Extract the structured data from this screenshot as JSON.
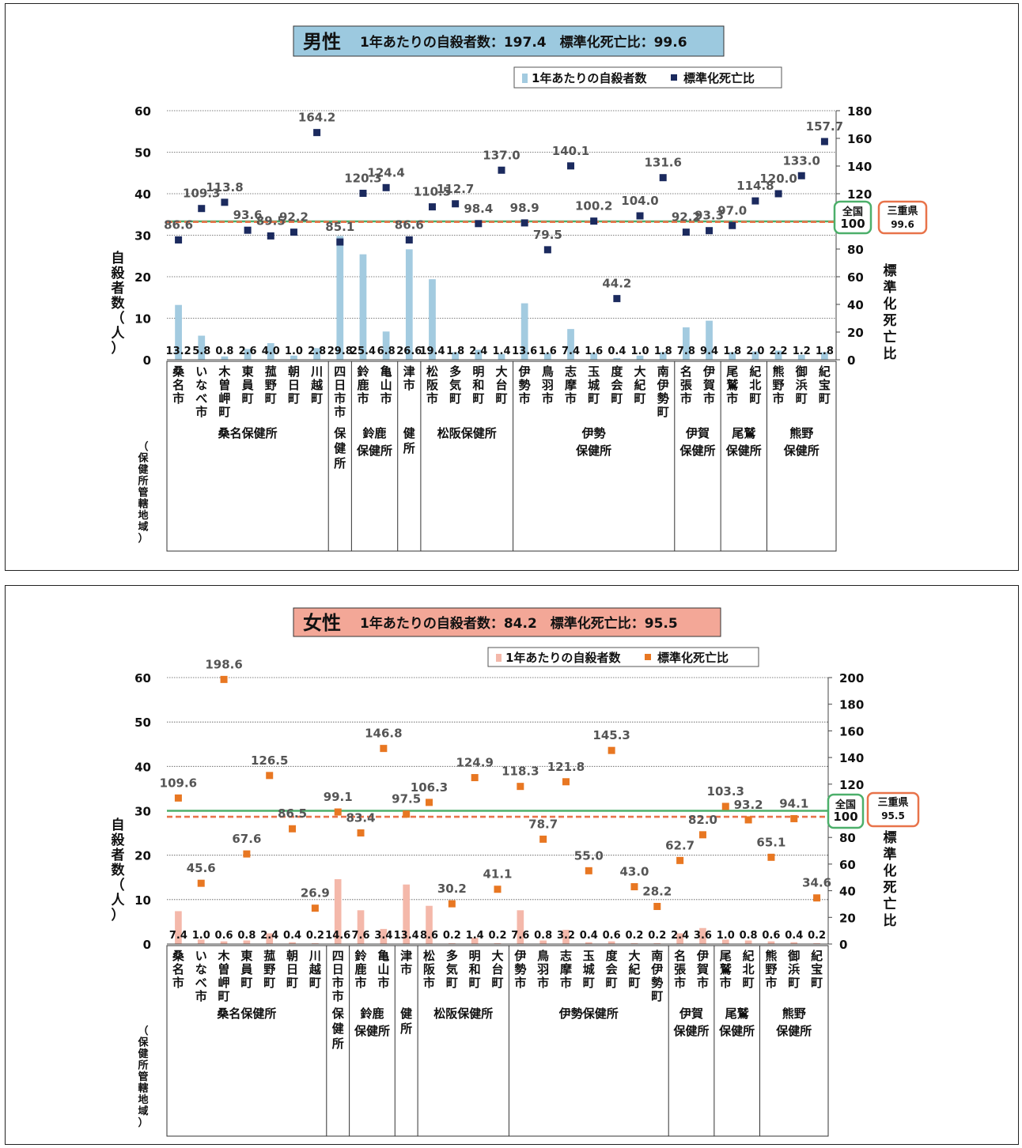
{
  "charts": [
    {
      "title": {
        "gender": "男性",
        "text": "1年あたりの自殺者数：197.4　標準化死亡比：99.6",
        "bg": "#9cc9df"
      },
      "legend": {
        "bar": "1年あたりの自殺者数",
        "point": "標準化死亡比"
      },
      "y_left_label": "自殺者数（人）",
      "y_right_label": "標準化死亡比",
      "region_axis_label": "（保健所管轄地域）",
      "national": {
        "label": "全国",
        "value": "100"
      },
      "prefecture": {
        "label": "三重県",
        "value": "99.6"
      }
    },
    {
      "title": {
        "gender": "女性",
        "text": "1年あたりの自殺者数：84.2　標準化死亡比：95.5",
        "bg": "#f3a797"
      },
      "legend": {
        "bar": "1年あたりの自殺者数",
        "point": "標準化死亡比"
      },
      "y_left_label": "自殺者数（人）",
      "y_right_label": "標準化死亡比",
      "region_axis_label": "（保健所管轄地域）",
      "national": {
        "label": "全国",
        "value": "100"
      },
      "prefecture": {
        "label": "三重県",
        "value": "95.5"
      }
    }
  ],
  "chart_data": [
    {
      "type": "bar+scatter",
      "categories": [
        "桑名市",
        "いなべ市",
        "木曽岬町",
        "東員町",
        "菰野町",
        "朝日町",
        "川越町",
        "四日市市",
        "鈴鹿市",
        "亀山市",
        "津市",
        "松阪市",
        "多気町",
        "明和町",
        "大台町",
        "伊勢市",
        "鳥羽市",
        "志摩市",
        "玉城町",
        "度会町",
        "大紀町",
        "南伊勢町",
        "名張市",
        "伊賀市",
        "尾鷲市",
        "紀北町",
        "熊野市",
        "御浜町",
        "紀宝町"
      ],
      "groups": [
        {
          "name": "桑名保健所",
          "lines": [
            "桑名保健所"
          ],
          "count": 7
        },
        {
          "name": "四日市市保健所",
          "lines": [
            "四日市市保健所"
          ],
          "vertical": true,
          "count": 1
        },
        {
          "name": "鈴鹿保健所",
          "lines": [
            "鈴鹿",
            "保健所"
          ],
          "count": 2
        },
        {
          "name": "津保健所",
          "lines": [
            "津保健所"
          ],
          "vertical": true,
          "count": 1
        },
        {
          "name": "松阪保健所",
          "lines": [
            "松阪保健所"
          ],
          "count": 4
        },
        {
          "name": "伊勢保健所",
          "lines": [
            "伊勢",
            "保健所"
          ],
          "count": 7
        },
        {
          "name": "伊賀保健所",
          "lines": [
            "伊賀",
            "保健所"
          ],
          "count": 2
        },
        {
          "name": "尾鷲保健所",
          "lines": [
            "尾鷲",
            "保健所"
          ],
          "count": 2
        },
        {
          "name": "熊野保健所",
          "lines": [
            "熊野",
            "保健所"
          ],
          "count": 3
        }
      ],
      "series": [
        {
          "name": "1年あたりの自殺者数",
          "kind": "bar",
          "axis": "left",
          "color": "#a3cbe0",
          "values": [
            13.2,
            5.8,
            0.8,
            2.6,
            4.0,
            1.0,
            2.8,
            29.8,
            25.4,
            6.8,
            26.6,
            19.4,
            1.8,
            2.4,
            1.4,
            13.6,
            1.6,
            7.4,
            1.6,
            0.4,
            1.0,
            1.8,
            7.8,
            9.4,
            1.8,
            2.0,
            2.2,
            1.2,
            1.8
          ]
        },
        {
          "name": "標準化死亡比",
          "kind": "scatter",
          "axis": "right",
          "color": "#1b2a5e",
          "values": [
            86.6,
            109.3,
            113.8,
            93.6,
            89.5,
            92.2,
            164.2,
            85.1,
            120.3,
            124.4,
            86.6,
            110.5,
            112.7,
            98.4,
            137.0,
            98.9,
            79.5,
            140.1,
            100.2,
            44.2,
            104.0,
            131.6,
            92.2,
            93.3,
            97.0,
            114.8,
            120.0,
            133.0,
            157.7
          ]
        }
      ],
      "ylim_left": [
        0,
        60
      ],
      "ylim_right": [
        0,
        180
      ],
      "yticks_left": [
        0,
        10,
        20,
        30,
        40,
        50,
        60
      ],
      "yticks_right": [
        0,
        20,
        40,
        60,
        80,
        100,
        120,
        140,
        160,
        180
      ],
      "reference_lines": [
        {
          "name": "全国",
          "value": 100,
          "color": "#4caf6a",
          "style": "solid"
        },
        {
          "name": "三重県",
          "value": 99.6,
          "color": "#e8734a",
          "style": "dashed"
        }
      ],
      "grid": true,
      "legend_position": "top"
    },
    {
      "type": "bar+scatter",
      "categories": [
        "桑名市",
        "いなべ市",
        "木曽岬町",
        "東員町",
        "菰野町",
        "朝日町",
        "川越町",
        "四日市市",
        "鈴鹿市",
        "亀山市",
        "津市",
        "松阪市",
        "多気町",
        "明和町",
        "大台町",
        "伊勢市",
        "鳥羽市",
        "志摩市",
        "玉城町",
        "度会町",
        "大紀町",
        "南伊勢町",
        "名張市",
        "伊賀市",
        "尾鷲市",
        "紀北町",
        "熊野市",
        "御浜町",
        "紀宝町"
      ],
      "groups": [
        {
          "name": "桑名保健所",
          "lines": [
            "桑名保健所"
          ],
          "count": 7
        },
        {
          "name": "四日市市保健所",
          "lines": [
            "四日市市保健所"
          ],
          "vertical": true,
          "count": 1
        },
        {
          "name": "鈴鹿保健所",
          "lines": [
            "鈴鹿",
            "保健所"
          ],
          "count": 2
        },
        {
          "name": "津保健所",
          "lines": [
            "津保健所"
          ],
          "vertical": true,
          "count": 1
        },
        {
          "name": "松阪保健所",
          "lines": [
            "松阪保健所"
          ],
          "count": 4
        },
        {
          "name": "伊勢保健所",
          "lines": [
            "伊勢保健所"
          ],
          "count": 7
        },
        {
          "name": "伊賀保健所",
          "lines": [
            "伊賀",
            "保健所"
          ],
          "count": 2
        },
        {
          "name": "尾鷲保健所",
          "lines": [
            "尾鷲",
            "保健所"
          ],
          "count": 2
        },
        {
          "name": "熊野保健所",
          "lines": [
            "熊野",
            "保健所"
          ],
          "count": 3
        }
      ],
      "series": [
        {
          "name": "1年あたりの自殺者数",
          "kind": "bar",
          "axis": "left",
          "color": "#f4b8aa",
          "values": [
            7.4,
            1.0,
            0.6,
            0.8,
            2.4,
            0.4,
            0.2,
            14.6,
            7.6,
            3.4,
            13.4,
            8.6,
            0.2,
            1.4,
            0.2,
            7.6,
            0.8,
            3.2,
            0.4,
            0.6,
            0.2,
            0.2,
            2.4,
            3.6,
            1.0,
            0.8,
            0.6,
            0.4,
            0.2
          ]
        },
        {
          "name": "標準化死亡比",
          "kind": "scatter",
          "axis": "right",
          "color": "#e87722",
          "values": [
            109.6,
            45.6,
            198.6,
            67.6,
            126.5,
            86.5,
            26.9,
            99.1,
            83.4,
            146.8,
            97.5,
            106.3,
            30.2,
            124.9,
            41.1,
            118.3,
            78.7,
            121.8,
            55.0,
            145.3,
            43.0,
            28.2,
            62.7,
            82.0,
            103.3,
            93.2,
            65.1,
            94.1,
            34.6
          ]
        }
      ],
      "ylim_left": [
        0,
        60
      ],
      "ylim_right": [
        0,
        200
      ],
      "yticks_left": [
        0,
        10,
        20,
        30,
        40,
        50,
        60
      ],
      "yticks_right": [
        0,
        20,
        40,
        60,
        80,
        100,
        120,
        140,
        160,
        180,
        200
      ],
      "reference_lines": [
        {
          "name": "全国",
          "value": 100,
          "color": "#4caf6a",
          "style": "solid"
        },
        {
          "name": "三重県",
          "value": 95.5,
          "color": "#e8734a",
          "style": "dashed"
        }
      ],
      "grid": true,
      "legend_position": "top"
    }
  ]
}
